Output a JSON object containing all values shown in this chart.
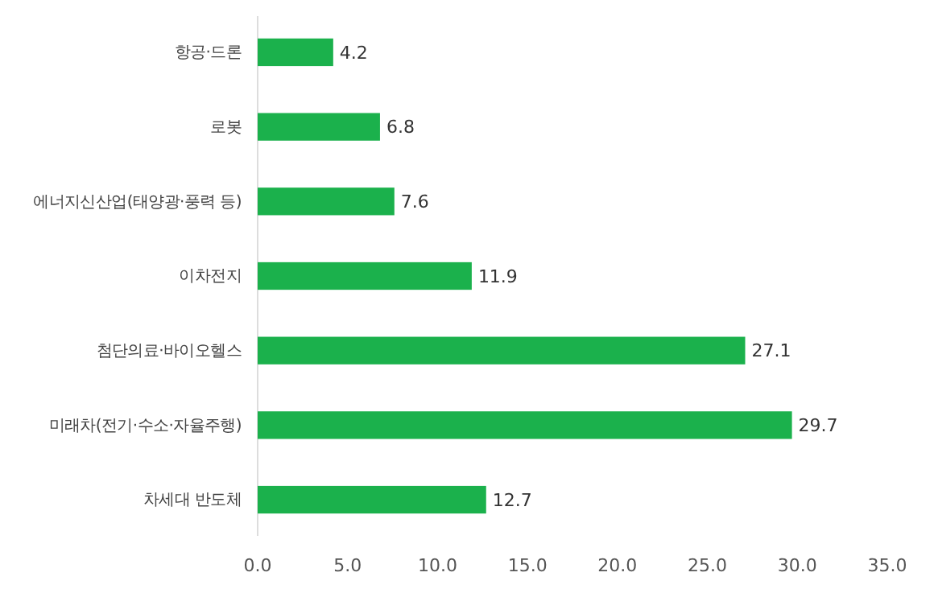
{
  "chart_data": {
    "type": "bar",
    "orientation": "horizontal",
    "categories": [
      "항공·드론",
      "로봇",
      "에너지신산업(태양광·풍력 등)",
      "이차전지",
      "첨단의료·바이오헬스",
      "미래차(전기·수소·자율주행)",
      "차세대 반도체"
    ],
    "values": [
      4.2,
      6.8,
      7.6,
      11.9,
      27.1,
      29.7,
      12.7
    ],
    "color": "#1bb14c",
    "data_labels": true,
    "xlim": [
      0,
      35
    ],
    "xticks": [
      {
        "value": 0,
        "label": "0.0"
      },
      {
        "value": 5,
        "label": "5.0"
      },
      {
        "value": 10,
        "label": "10.0"
      },
      {
        "value": 15,
        "label": "15.0"
      },
      {
        "value": 20,
        "label": "20.0"
      },
      {
        "value": 25,
        "label": "25.0"
      },
      {
        "value": 30,
        "label": "30.0"
      },
      {
        "value": 35,
        "label": "35.0"
      }
    ],
    "grid": false
  }
}
